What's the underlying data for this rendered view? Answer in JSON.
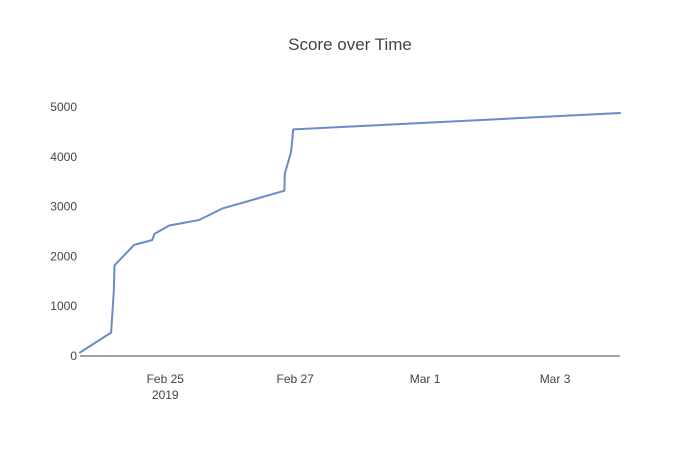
{
  "chart_data": {
    "type": "line",
    "title": "Score over Time",
    "xlabel": "",
    "ylabel": "",
    "x_type": "date",
    "xlim": [
      "2019-02-23T16:30",
      "2019-03-04T00:00"
    ],
    "ylim": [
      0,
      5000
    ],
    "y_ticks": [
      0,
      1000,
      2000,
      3000,
      4000,
      5000
    ],
    "x_ticks": [
      {
        "value": "2019-02-25",
        "label": "Feb 25",
        "sublabel": "2019"
      },
      {
        "value": "2019-02-27",
        "label": "Feb 27",
        "sublabel": ""
      },
      {
        "value": "2019-03-01",
        "label": "Mar 1",
        "sublabel": ""
      },
      {
        "value": "2019-03-03",
        "label": "Mar 3",
        "sublabel": ""
      }
    ],
    "grid": false,
    "legend": "none",
    "series": [
      {
        "color": "#6a8bc9",
        "points": [
          {
            "x": "2019-02-23T16:30",
            "y": 70
          },
          {
            "x": "2019-02-24T04:00",
            "y": 470
          },
          {
            "x": "2019-02-24T05:00",
            "y": 1300
          },
          {
            "x": "2019-02-24T05:15",
            "y": 1820
          },
          {
            "x": "2019-02-24T12:30",
            "y": 2230
          },
          {
            "x": "2019-02-24T19:15",
            "y": 2330
          },
          {
            "x": "2019-02-24T20:00",
            "y": 2450
          },
          {
            "x": "2019-02-24T22:30",
            "y": 2530
          },
          {
            "x": "2019-02-25T01:30",
            "y": 2620
          },
          {
            "x": "2019-02-25T12:30",
            "y": 2730
          },
          {
            "x": "2019-02-25T21:00",
            "y": 2960
          },
          {
            "x": "2019-02-26T20:00",
            "y": 3320
          },
          {
            "x": "2019-02-26T20:10",
            "y": 3660
          },
          {
            "x": "2019-02-26T22:30",
            "y": 4100
          },
          {
            "x": "2019-02-26T23:15",
            "y": 4550
          },
          {
            "x": "2019-03-04T00:00",
            "y": 4880
          }
        ]
      }
    ]
  }
}
